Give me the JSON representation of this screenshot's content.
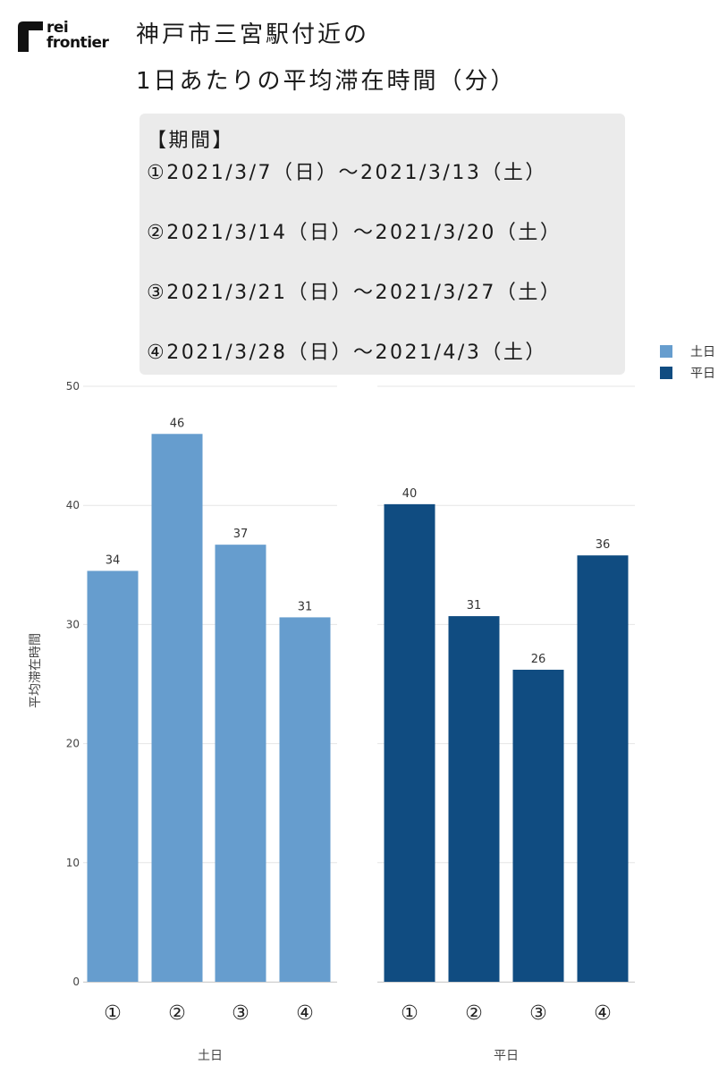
{
  "logo": {
    "line1": "rei",
    "line2": "frontier"
  },
  "title": {
    "line1": "神戸市三宮駅付近の",
    "line2": "1日あたりの平均滞在時間（分）"
  },
  "period_box": {
    "header": "【期間】",
    "periods": [
      "①2021/3/7（日）～2021/3/13（土）",
      "②2021/3/14（日）～2021/3/20（土）",
      "③2021/3/21（日）～2021/3/27（土）",
      "④2021/3/28（日）～2021/4/3（土）"
    ]
  },
  "colors": {
    "weekend": "#669dce",
    "weekday": "#104c81",
    "grid": "#e6e6e6"
  },
  "chart_data": {
    "type": "bar",
    "ylabel": "平均滞在時間",
    "ylim": [
      0,
      50
    ],
    "yticks": [
      0,
      10,
      20,
      30,
      40,
      50
    ],
    "categories": [
      "①",
      "②",
      "③",
      "④"
    ],
    "legend": {
      "position": "top-right",
      "entries": [
        "土日",
        "平日"
      ]
    },
    "panels": [
      {
        "name": "土日",
        "values": [
          34.5,
          46.0,
          36.7,
          30.6
        ],
        "labels": [
          "34",
          "46",
          "37",
          "31"
        ]
      },
      {
        "name": "平日",
        "values": [
          40.1,
          30.7,
          26.2,
          35.8
        ],
        "labels": [
          "40",
          "31",
          "26",
          "36"
        ]
      }
    ]
  }
}
